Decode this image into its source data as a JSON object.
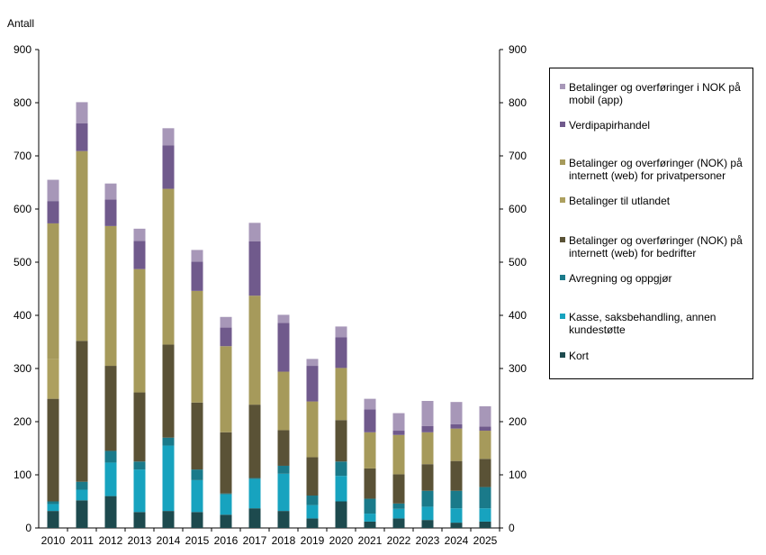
{
  "chart_data": {
    "type": "bar",
    "stacked": true,
    "ylabel": "Antall",
    "ylim": [
      0,
      900
    ],
    "yticks": [
      0,
      100,
      200,
      300,
      400,
      500,
      600,
      700,
      800,
      900
    ],
    "secondary_yaxis": true,
    "grid": false,
    "legend_position": "right",
    "categories": [
      "2010",
      "2011",
      "2012",
      "2013",
      "2014",
      "2015",
      "2016",
      "2017",
      "2018",
      "2019",
      "2020",
      "2021",
      "2022",
      "2023",
      "2024",
      "2025"
    ],
    "series": [
      {
        "name": "Kort",
        "color": "#1d4a4e",
        "values": [
          32,
          52,
          60,
          30,
          32,
          30,
          25,
          37,
          32,
          18,
          50,
          12,
          18,
          15,
          10,
          12
        ]
      },
      {
        "name": "Kasse, saksbehandling, annen kundestøtte",
        "color": "#17a3bf",
        "values": [
          13,
          20,
          63,
          80,
          123,
          60,
          38,
          55,
          70,
          25,
          48,
          15,
          18,
          25,
          27,
          25
        ]
      },
      {
        "name": "Avregning og oppgjør",
        "color": "#1a7a8a",
        "values": [
          5,
          15,
          22,
          15,
          15,
          20,
          2,
          2,
          15,
          18,
          27,
          28,
          10,
          30,
          33,
          40
        ]
      },
      {
        "name": "Betalinger og overføringer (NOK) på internett (web) for bedrifter",
        "color": "#5a5236",
        "values": [
          193,
          265,
          160,
          130,
          175,
          126,
          115,
          138,
          67,
          72,
          78,
          57,
          55,
          50,
          56,
          53
        ]
      },
      {
        "name": "Betalinger til utlandet",
        "color": "#ada05f",
        "values": [
          75,
          0,
          0,
          0,
          0,
          0,
          0,
          0,
          0,
          0,
          0,
          0,
          0,
          0,
          0,
          0
        ]
      },
      {
        "name": "Betalinger og overføringer (NOK) på internett (web) for privatpersoner",
        "color": "#a69a5b",
        "values": [
          255,
          357,
          263,
          232,
          293,
          210,
          162,
          205,
          110,
          105,
          98,
          68,
          74,
          60,
          61,
          53
        ]
      },
      {
        "name": "Verdipapirhandel",
        "color": "#705a8c",
        "values": [
          42,
          52,
          50,
          53,
          82,
          55,
          35,
          102,
          92,
          67,
          58,
          43,
          8,
          12,
          8,
          8
        ]
      },
      {
        "name": "Betalinger og overføringer i NOK på mobil (app)",
        "color": "#a797b8",
        "values": [
          40,
          40,
          30,
          23,
          32,
          22,
          20,
          35,
          15,
          13,
          20,
          20,
          33,
          47,
          42,
          38
        ]
      }
    ]
  }
}
